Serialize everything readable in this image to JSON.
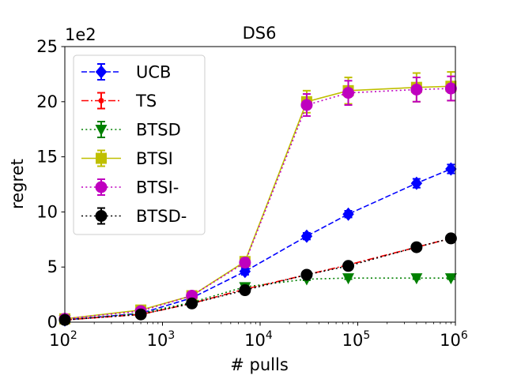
{
  "chart_data": {
    "type": "line",
    "title": "DS6",
    "xlabel": "# pulls",
    "ylabel": "regret",
    "y_multiplier_label": "1e2",
    "xscale": "log",
    "xlim": [
      100,
      1000000
    ],
    "ylim": [
      0,
      25
    ],
    "grid": false,
    "legend_position": "upper-left",
    "x_ticks": [
      {
        "value": 100,
        "base": "10",
        "exp": "2"
      },
      {
        "value": 1000,
        "base": "10",
        "exp": "3"
      },
      {
        "value": 10000,
        "base": "10",
        "exp": "4"
      },
      {
        "value": 100000,
        "base": "10",
        "exp": "5"
      },
      {
        "value": 1000000,
        "base": "10",
        "exp": "6"
      }
    ],
    "y_ticks": [
      {
        "value": 0,
        "label": "0"
      },
      {
        "value": 5,
        "label": "5"
      },
      {
        "value": 10,
        "label": "10"
      },
      {
        "value": 15,
        "label": "15"
      },
      {
        "value": 20,
        "label": "20"
      },
      {
        "value": 25,
        "label": "25"
      }
    ],
    "x": [
      100,
      600,
      2000,
      7000,
      30000,
      80000,
      400000,
      900000
    ],
    "series": [
      {
        "name": "UCB",
        "color": "#0000ff",
        "dash": "dashed",
        "marker": "diamond",
        "values": [
          0.2,
          0.8,
          2.2,
          4.6,
          7.8,
          9.8,
          12.6,
          13.9
        ],
        "errors": [
          0.1,
          0.1,
          0.2,
          0.3,
          0.3,
          0.3,
          0.4,
          0.4
        ]
      },
      {
        "name": "TS",
        "color": "#ff0000",
        "dash": "dashdot",
        "marker": "small-circle",
        "values": [
          0.2,
          0.7,
          1.7,
          3.0,
          4.3,
          5.2,
          6.8,
          7.6
        ],
        "errors": [
          0.1,
          0.1,
          0.1,
          0.1,
          0.2,
          0.2,
          0.2,
          0.2
        ]
      },
      {
        "name": "BTSD",
        "color": "#008000",
        "dash": "dotted",
        "marker": "triangle-down",
        "values": [
          0.2,
          0.8,
          1.8,
          3.2,
          3.9,
          4.0,
          4.0,
          4.0
        ],
        "errors": [
          0.1,
          0.1,
          0.1,
          0.1,
          0.1,
          0.1,
          0.1,
          0.1
        ]
      },
      {
        "name": "BTSI",
        "color": "#bfbf00",
        "dash": "solid",
        "marker": "square",
        "values": [
          0.3,
          1.1,
          2.4,
          5.5,
          20.0,
          21.0,
          21.3,
          21.4
        ],
        "errors": [
          0.1,
          0.1,
          0.2,
          0.4,
          1.0,
          1.2,
          1.3,
          1.3
        ]
      },
      {
        "name": "BTSI-",
        "color": "#bf00bf",
        "dash": "dotted",
        "marker": "circle",
        "values": [
          0.3,
          1.0,
          2.4,
          5.4,
          19.7,
          20.8,
          21.1,
          21.2
        ],
        "errors": [
          0.1,
          0.1,
          0.2,
          0.4,
          1.0,
          1.1,
          1.1,
          1.1
        ]
      },
      {
        "name": "BTSD-",
        "color": "#000000",
        "dash": "dotted",
        "marker": "circle",
        "values": [
          0.2,
          0.7,
          1.7,
          2.9,
          4.3,
          5.1,
          6.8,
          7.6
        ],
        "errors": [
          0.1,
          0.1,
          0.1,
          0.1,
          0.2,
          0.2,
          0.2,
          0.2
        ]
      }
    ]
  }
}
